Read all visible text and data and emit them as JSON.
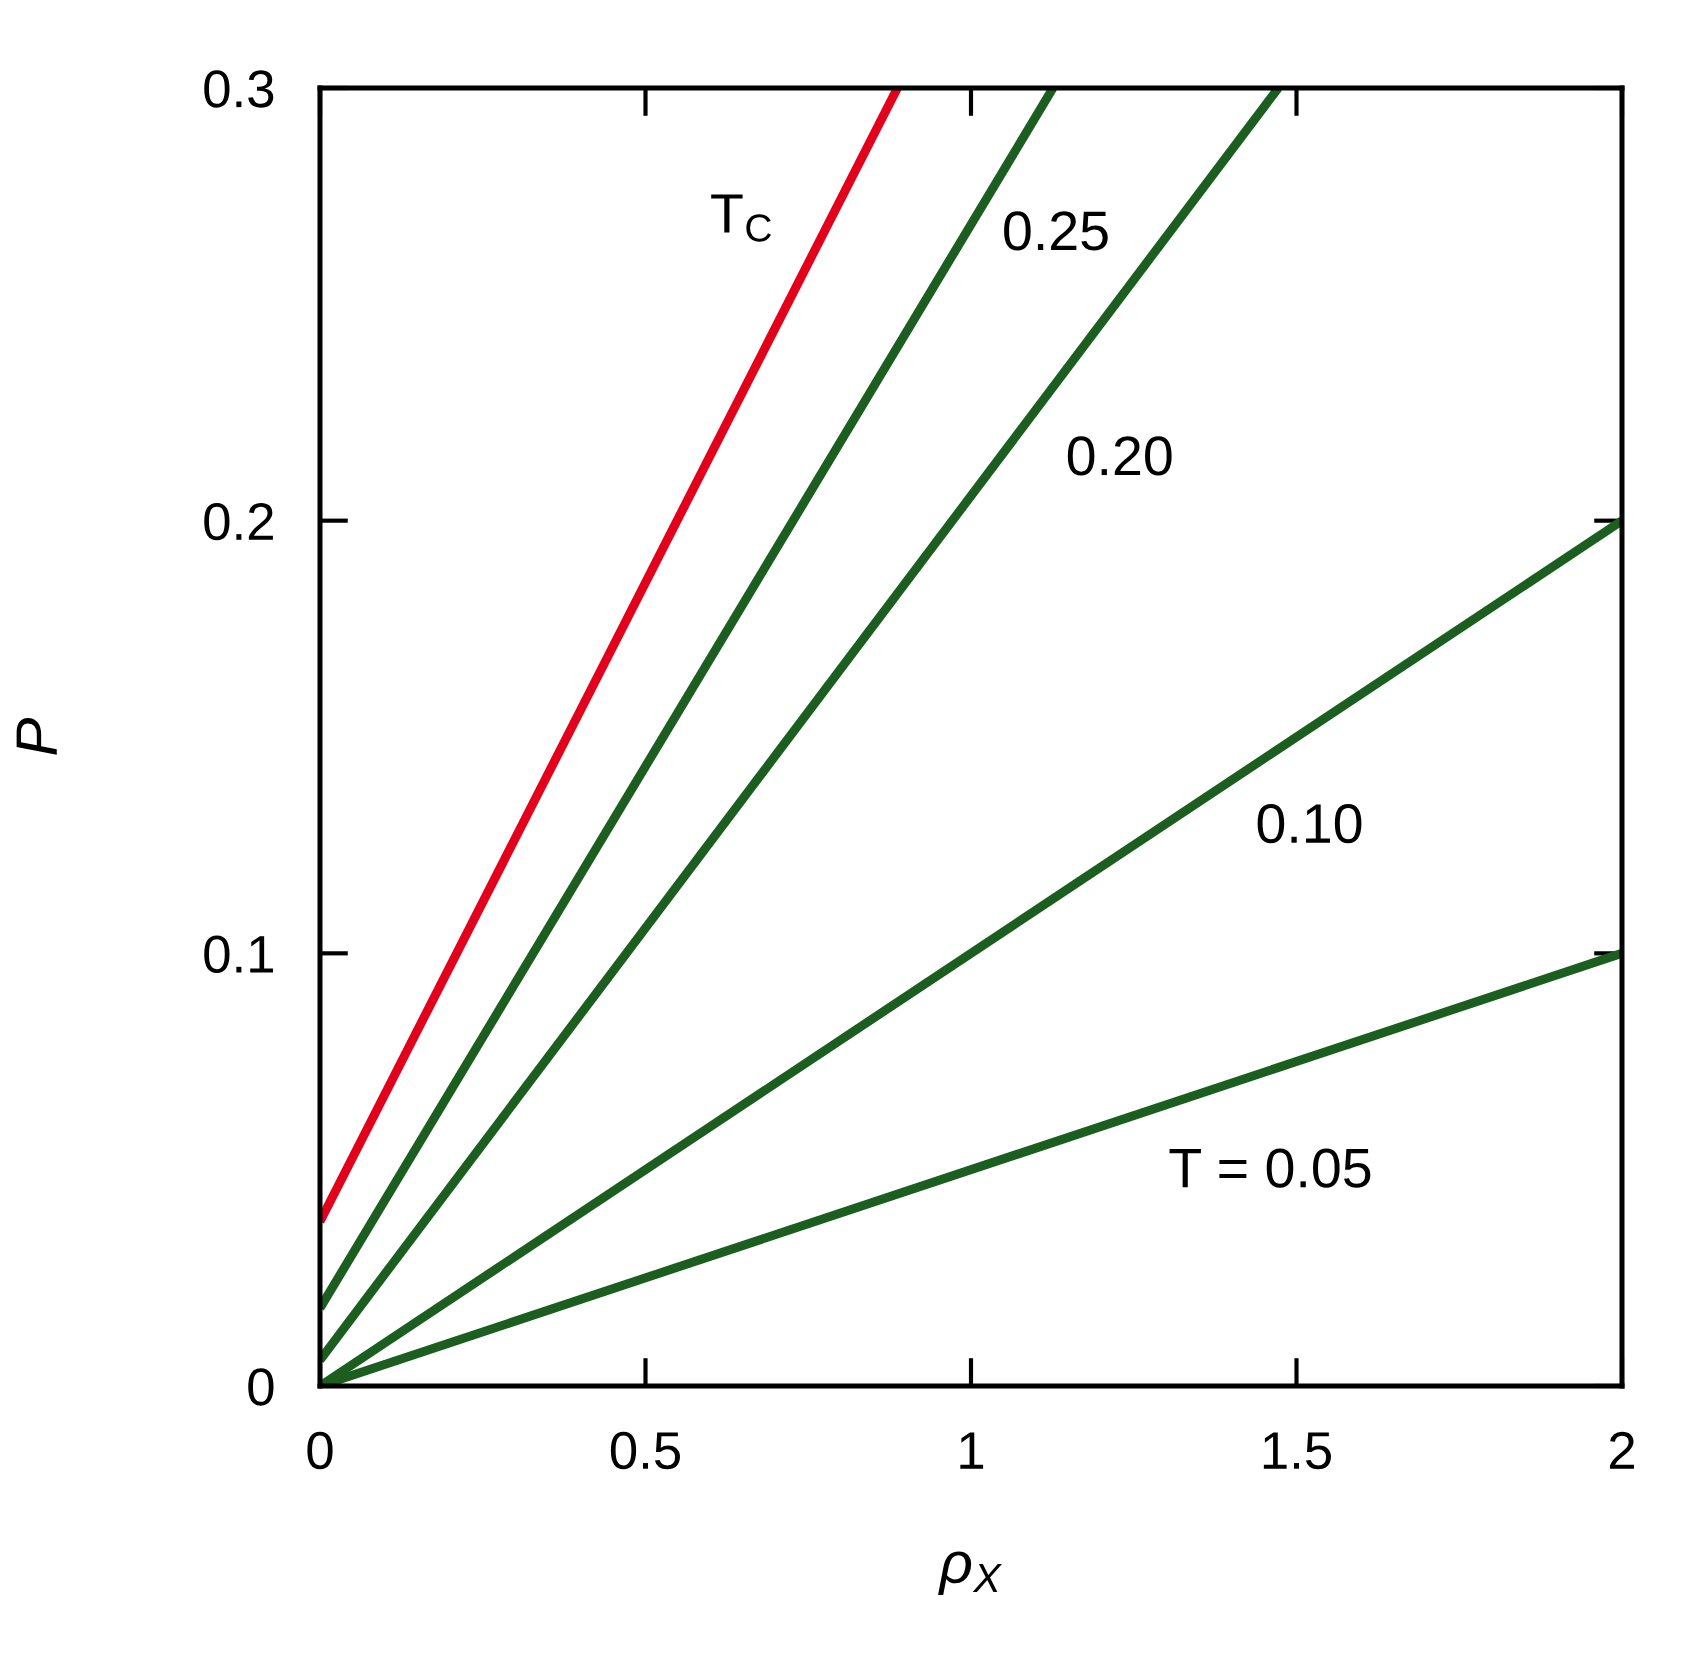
{
  "chart_data": {
    "type": "line",
    "xlabel": "ρ$_{X}$",
    "ylabel": "P",
    "xlim": [
      0,
      2
    ],
    "ylim": [
      0,
      0.3
    ],
    "xticks": [
      0,
      0.5,
      1,
      1.5,
      2
    ],
    "yticks": [
      0,
      0.1,
      0.2,
      0.3
    ],
    "grid": false,
    "legend": false,
    "marker": "none",
    "line_style": "solid",
    "series": [
      {
        "name": "T$_{C}$",
        "color": "#e2001a",
        "x": [
          0,
          0.887
        ],
        "values": [
          0.038,
          0.3
        ]
      },
      {
        "name": "0.25",
        "color": "#1b5e20",
        "x": [
          0,
          1.126
        ],
        "values": [
          0.018,
          0.3
        ]
      },
      {
        "name": "0.20",
        "color": "#1b5e20",
        "x": [
          0,
          1.472
        ],
        "values": [
          0.006,
          0.3
        ]
      },
      {
        "name": "0.10",
        "color": "#1b5e20",
        "x": [
          0,
          2
        ],
        "values": [
          0,
          0.2
        ]
      },
      {
        "name": "T = 0.05",
        "color": "#1b5e20",
        "x": [
          0,
          2
        ],
        "values": [
          0,
          0.1
        ]
      }
    ]
  }
}
